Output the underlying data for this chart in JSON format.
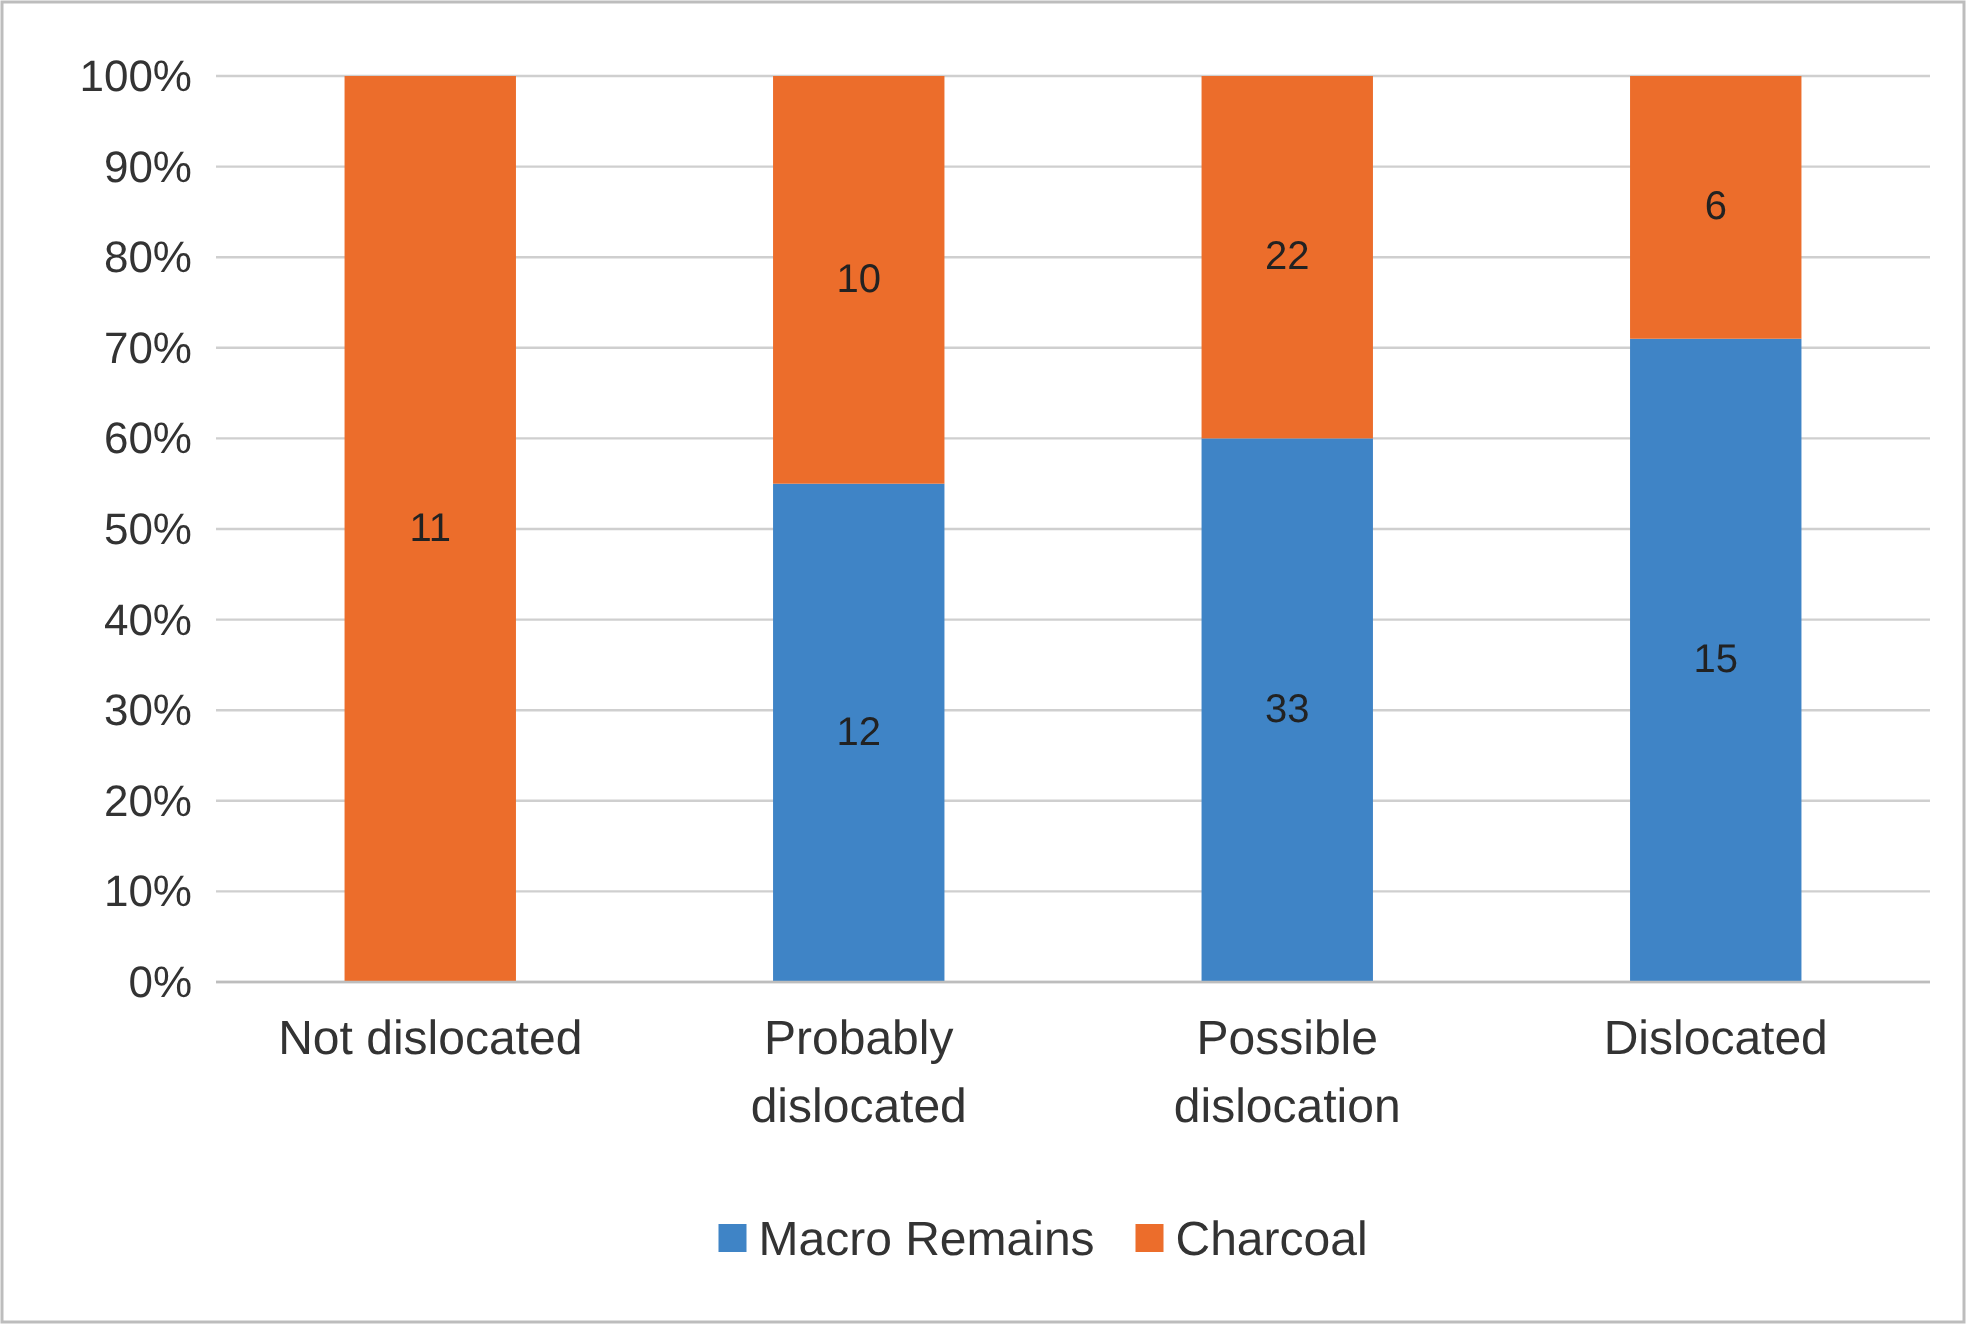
{
  "chart_data": {
    "type": "bar",
    "stacked": true,
    "categories": [
      "Not dislocated",
      "Probably dislocated",
      "Possible dislocation",
      "Dislocated"
    ],
    "series": [
      {
        "name": "Macro Remains",
        "color": "#3f84c6",
        "values": [
          0,
          55,
          60,
          71
        ]
      },
      {
        "name": "Charcoal",
        "color": "#ec6d2b",
        "values": [
          100,
          45,
          40,
          29
        ]
      }
    ],
    "annotations": [
      "11",
      "12",
      "10",
      "33",
      "22",
      "15",
      "6"
    ],
    "ylim": [
      0,
      100
    ],
    "yticks": [
      {
        "value": 0,
        "label": "0%"
      },
      {
        "value": 10,
        "label": "10%"
      },
      {
        "value": 20,
        "label": "20%"
      },
      {
        "value": 30,
        "label": "30%"
      },
      {
        "value": 40,
        "label": "40%"
      },
      {
        "value": 50,
        "label": "50%"
      },
      {
        "value": 60,
        "label": "60%"
      },
      {
        "value": 70,
        "label": "70%"
      },
      {
        "value": 80,
        "label": "80%"
      },
      {
        "value": 90,
        "label": "90%"
      },
      {
        "value": 100,
        "label": "100%"
      }
    ],
    "grid": "y",
    "legend": "bottom"
  }
}
